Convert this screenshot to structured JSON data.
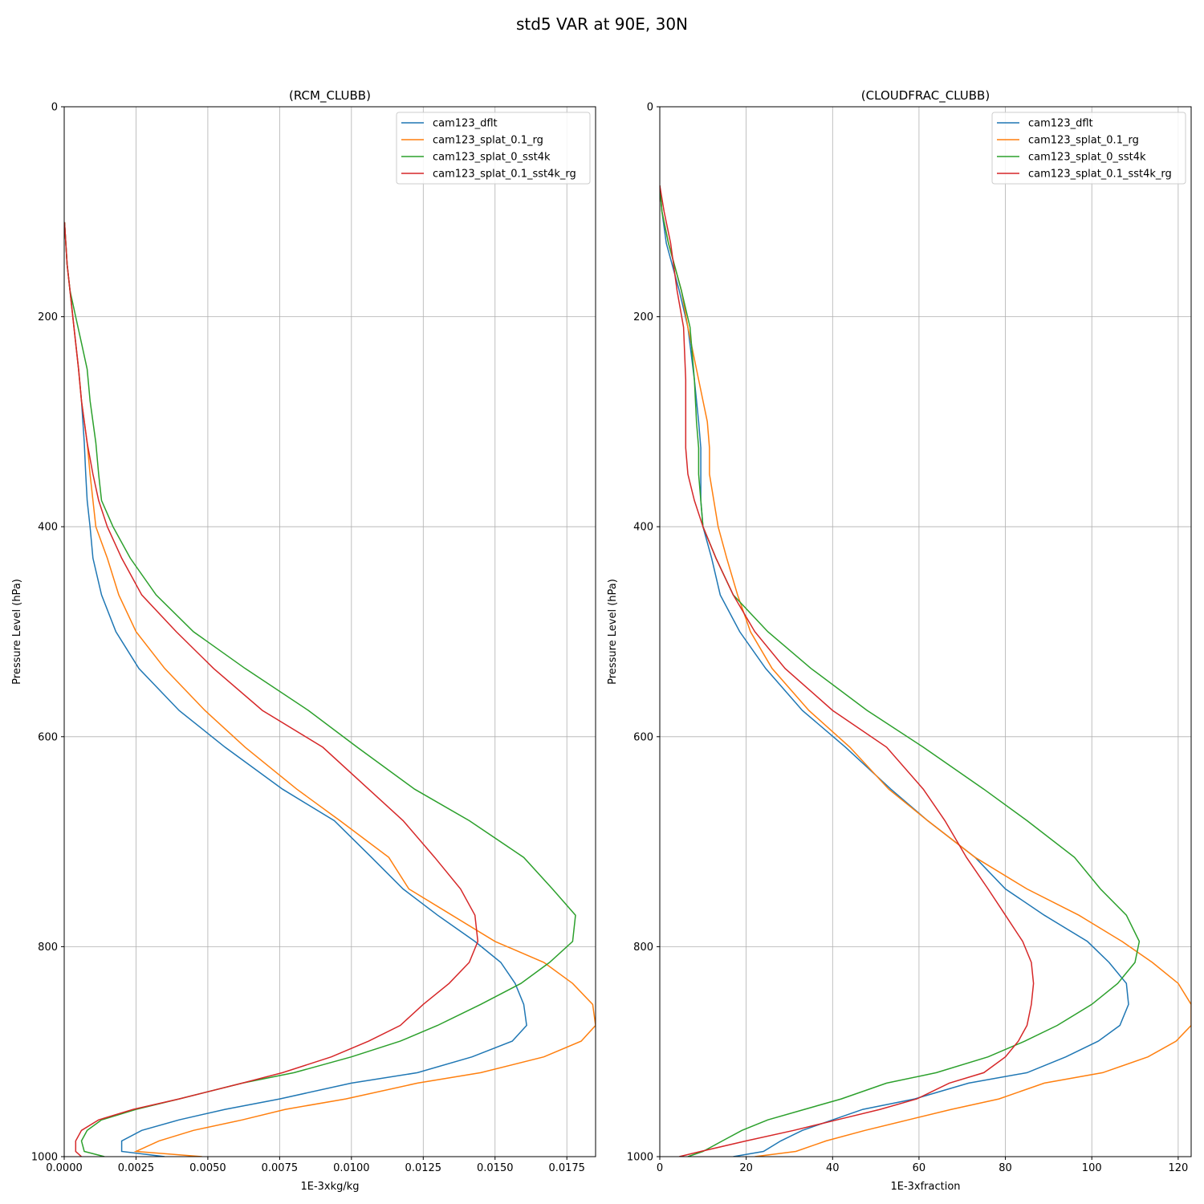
{
  "figure_title": "std5 VAR at 90E, 30N",
  "series_colors": {
    "cam123_dflt": "#1f77b4",
    "cam123_splat_0.1_rg": "#ff7f0e",
    "cam123_splat_0_sst4k": "#2ca02c",
    "cam123_splat_0.1_sst4k_rg": "#d62728"
  },
  "chart_data": [
    {
      "type": "line",
      "title": "(RCM_CLUBB)",
      "xlabel": "1E-3xkg/kg",
      "ylabel": "Pressure Level (hPa)",
      "xlim": [
        0,
        0.0185
      ],
      "ylim": [
        1000,
        0
      ],
      "y_inverted": true,
      "xticks": [
        "0.0000",
        "0.0025",
        "0.0050",
        "0.0075",
        "0.0100",
        "0.0125",
        "0.0150",
        "0.0175"
      ],
      "xtick_values": [
        0,
        0.0025,
        0.005,
        0.0075,
        0.01,
        0.0125,
        0.015,
        0.0175
      ],
      "yticks": [
        "0",
        "200",
        "400",
        "600",
        "800",
        "1000"
      ],
      "ytick_values": [
        0,
        200,
        400,
        600,
        800,
        1000
      ],
      "grid": true,
      "legend": "top-right",
      "y": [
        110,
        150,
        175,
        200,
        225,
        250,
        280,
        320,
        350,
        375,
        400,
        430,
        465,
        500,
        535,
        575,
        610,
        650,
        680,
        715,
        745,
        770,
        795,
        815,
        835,
        855,
        875,
        890,
        905,
        920,
        930,
        945,
        955,
        965,
        975,
        985,
        995,
        1000
      ],
      "series": [
        {
          "name": "cam123_dflt",
          "values": [
            1e-05,
            0.0001,
            0.0002,
            0.0003,
            0.0004,
            0.0005,
            0.0006,
            0.0007,
            0.00075,
            0.0008,
            0.0009,
            0.001,
            0.0013,
            0.0018,
            0.0026,
            0.004,
            0.0056,
            0.0076,
            0.0094,
            0.0107,
            0.0118,
            0.013,
            0.0143,
            0.0152,
            0.0157,
            0.016,
            0.0161,
            0.0156,
            0.0142,
            0.0123,
            0.01,
            0.0075,
            0.0056,
            0.004,
            0.0027,
            0.002,
            0.002,
            0.0035
          ]
        },
        {
          "name": "cam123_splat_0.1_rg",
          "values": [
            1e-05,
            0.0001,
            0.0002,
            0.0003,
            0.0004,
            0.0005,
            0.0006,
            0.0008,
            0.0009,
            0.001,
            0.0011,
            0.0015,
            0.0019,
            0.0025,
            0.0035,
            0.0049,
            0.0063,
            0.0081,
            0.0096,
            0.0113,
            0.012,
            0.0135,
            0.015,
            0.0167,
            0.0177,
            0.0184,
            0.0185,
            0.018,
            0.0167,
            0.0145,
            0.0123,
            0.0098,
            0.0077,
            0.0062,
            0.0045,
            0.0033,
            0.0025,
            0.0048
          ]
        },
        {
          "name": "cam123_splat_0_sst4k",
          "values": [
            1e-05,
            0.0001,
            0.0002,
            0.0004,
            0.0006,
            0.0008,
            0.0009,
            0.0011,
            0.0012,
            0.0013,
            0.0017,
            0.0023,
            0.0032,
            0.0045,
            0.0063,
            0.0085,
            0.0102,
            0.0122,
            0.0141,
            0.016,
            0.017,
            0.0178,
            0.0177,
            0.0169,
            0.0159,
            0.0145,
            0.013,
            0.0117,
            0.01,
            0.008,
            0.0062,
            0.004,
            0.0025,
            0.0013,
            0.0008,
            0.0006,
            0.0007,
            0.0014
          ]
        },
        {
          "name": "cam123_splat_0.1_sst4k_rg",
          "values": [
            1e-05,
            0.0001,
            0.0002,
            0.0003,
            0.0004,
            0.0005,
            0.0006,
            0.0008,
            0.001,
            0.0012,
            0.0015,
            0.002,
            0.0027,
            0.0039,
            0.0052,
            0.0069,
            0.009,
            0.0106,
            0.0118,
            0.0129,
            0.0138,
            0.0143,
            0.0144,
            0.0141,
            0.0134,
            0.0125,
            0.0117,
            0.0106,
            0.0093,
            0.0076,
            0.0062,
            0.004,
            0.0024,
            0.0012,
            0.0006,
            0.0004,
            0.0004,
            0.0006
          ]
        }
      ]
    },
    {
      "type": "line",
      "title": "(CLOUDFRAC_CLUBB)",
      "xlabel": "1E-3xfraction",
      "ylabel": "Pressure Level (hPa)",
      "xlim": [
        0,
        123
      ],
      "ylim": [
        1000,
        0
      ],
      "y_inverted": true,
      "xticks": [
        "0",
        "20",
        "40",
        "60",
        "80",
        "100",
        "120"
      ],
      "xtick_values": [
        0,
        20,
        40,
        60,
        80,
        100,
        120
      ],
      "yticks": [
        "0",
        "200",
        "400",
        "600",
        "800",
        "1000"
      ],
      "ytick_values": [
        0,
        200,
        400,
        600,
        800,
        1000
      ],
      "grid": true,
      "legend": "top-right",
      "y": [
        75,
        100,
        130,
        175,
        210,
        260,
        300,
        325,
        350,
        375,
        400,
        430,
        465,
        500,
        535,
        575,
        610,
        650,
        680,
        715,
        745,
        770,
        795,
        815,
        835,
        855,
        875,
        890,
        905,
        920,
        930,
        945,
        955,
        965,
        975,
        985,
        995,
        1000
      ],
      "series": [
        {
          "name": "cam123_dflt",
          "values": [
            0,
            0.5,
            1.5,
            4.5,
            6.5,
            8,
            9,
            9.5,
            9.5,
            9.5,
            10,
            12,
            14,
            18.5,
            24.5,
            33,
            43,
            53.5,
            62,
            73,
            80,
            89,
            99,
            104,
            108,
            108.5,
            106.5,
            101.5,
            94,
            85,
            71.5,
            59,
            47,
            40,
            33,
            28,
            24,
            17
          ]
        },
        {
          "name": "cam123_splat_0.1_rg",
          "values": [
            0,
            0.5,
            2,
            5,
            6.5,
            9,
            11,
            11.5,
            11.5,
            12.5,
            13.5,
            15.5,
            18,
            21,
            26,
            34.5,
            44,
            53,
            62,
            73,
            85,
            97,
            107,
            114,
            120,
            123,
            123,
            119.5,
            113,
            102.5,
            89,
            78.5,
            67.5,
            57.5,
            47.5,
            38.5,
            31.5,
            22
          ]
        },
        {
          "name": "cam123_splat_0_sst4k",
          "values": [
            0,
            0.5,
            2,
            5,
            7,
            8,
            8.5,
            9,
            9,
            9.5,
            10,
            13,
            17,
            25,
            35,
            48,
            61,
            75,
            85,
            96,
            102,
            108,
            111,
            110,
            106,
            100,
            92,
            84.5,
            76,
            64,
            52.5,
            42,
            33.5,
            25,
            19,
            14.5,
            10,
            6.5
          ]
        },
        {
          "name": "cam123_splat_0.1_sst4k_rg",
          "values": [
            0,
            1,
            2.5,
            4,
            5.5,
            6,
            6,
            6,
            6.5,
            8,
            10,
            13,
            17,
            22,
            29,
            40,
            52.5,
            61,
            66,
            71,
            76,
            80,
            84,
            86,
            86.5,
            86,
            85,
            83,
            80,
            75,
            67,
            59.5,
            51,
            41,
            31,
            20,
            9.5,
            4.5
          ]
        }
      ]
    }
  ]
}
